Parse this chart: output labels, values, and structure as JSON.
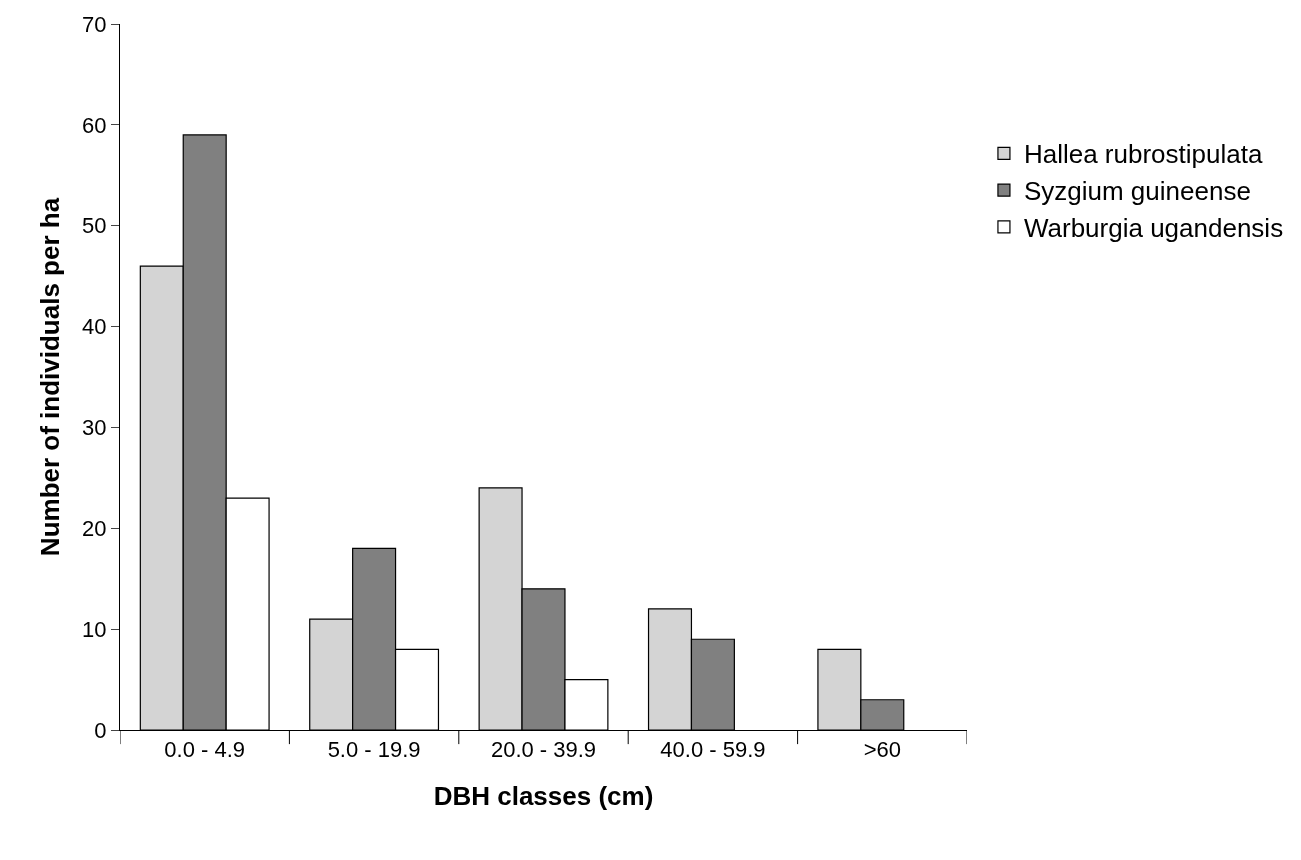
{
  "chart_data": {
    "type": "bar",
    "xlabel": "DBH classes (cm)",
    "ylabel": "Number of individuals per ha",
    "categories": [
      "0.0 - 4.9",
      "5.0 - 19.9",
      "20.0 - 39.9",
      "40.0 - 59.9",
      ">60"
    ],
    "series": [
      {
        "name": "Hallea rubrostipulata",
        "color": "#d4d4d4",
        "values": [
          46,
          11,
          24,
          12,
          8
        ]
      },
      {
        "name": "Syzgium guineense",
        "color": "#808080",
        "values": [
          59,
          18,
          14,
          9,
          3
        ]
      },
      {
        "name": "Warburgia ugandensis",
        "color": "#ffffff",
        "values": [
          23,
          8,
          5,
          0,
          0
        ]
      }
    ],
    "ylim": [
      0,
      70
    ],
    "yticks": [
      0,
      10,
      20,
      30,
      40,
      50,
      60,
      70
    ],
    "legend": "right"
  }
}
